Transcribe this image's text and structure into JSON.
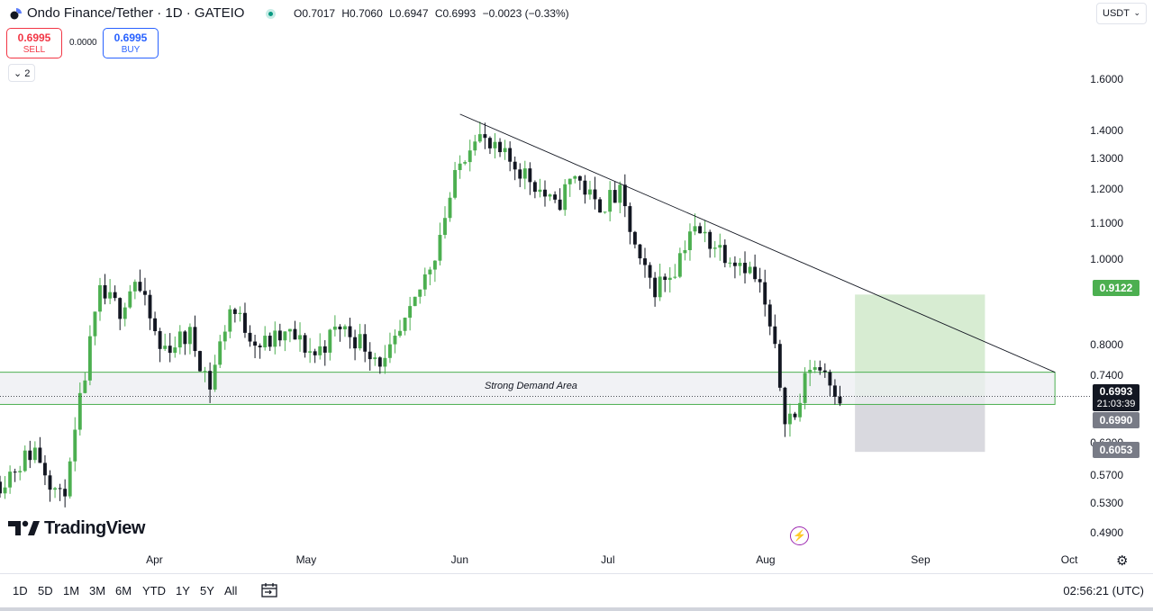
{
  "header": {
    "symbol_title": "Ondo Finance/Tether · 1D · GATEIO",
    "ohlc": {
      "o": "O0.7017",
      "h": "H0.7060",
      "l": "L0.6947",
      "c": "C0.6993",
      "change": "−0.0023 (−0.33%)"
    },
    "currency": "USDT"
  },
  "trade": {
    "sell_price": "0.6995",
    "sell_label": "SELL",
    "spread": "0.0000",
    "buy_price": "0.6995",
    "buy_label": "BUY",
    "indicators_count": "2"
  },
  "price_axis": {
    "labels": [
      "1.6000",
      "1.4000",
      "1.3000",
      "1.2000",
      "1.1000",
      "1.0000",
      "0.8000",
      "0.7400",
      "0.6200",
      "0.5700",
      "0.5300",
      "0.4900"
    ],
    "target_tag": "0.9122",
    "last_price": "0.6993",
    "countdown": "21:03:39",
    "close_tag": "0.6990",
    "stop_tag": "0.6053"
  },
  "time_axis": {
    "labels": [
      "Apr",
      "May",
      "Jun",
      "Jul",
      "Aug",
      "Sep",
      "Oct"
    ]
  },
  "annotations": {
    "zone_label": "Strong Demand Area"
  },
  "branding": {
    "logo_text": "TradingView"
  },
  "bottom_bar": {
    "ranges": [
      "1D",
      "5D",
      "1M",
      "3M",
      "6M",
      "YTD",
      "1Y",
      "5Y",
      "All"
    ],
    "clock": "02:56:21 (UTC)"
  },
  "colors": {
    "up": "#26a69a",
    "up_candle": "#4caf50",
    "down": "#131722",
    "target_zone": "#d7ecd2",
    "stop_zone": "#d9d9df",
    "demand_fill": "#eceef2",
    "demand_border": "#4caf50"
  },
  "icons": {
    "logo": "ondo-logo-icon",
    "live": "status-dot-icon",
    "flash": "lightning-icon",
    "settings": "gear-icon",
    "compare": "calendar-range-icon",
    "collapse": "chevron-down-icon"
  },
  "chart_data": {
    "type": "candlestick",
    "symbol": "ONDO/USDT",
    "timeframe": "1D",
    "x_range": [
      "2024-03-01",
      "2024-10-05"
    ],
    "y_range": [
      0.47,
      1.7
    ],
    "price_scale": "log",
    "close_trend": [
      [
        "2024-03-01",
        0.56
      ],
      [
        "2024-03-08",
        0.61
      ],
      [
        "2024-03-14",
        0.52
      ],
      [
        "2024-03-18",
        0.74
      ],
      [
        "2024-03-21",
        0.91
      ],
      [
        "2024-03-25",
        0.88
      ],
      [
        "2024-03-28",
        0.95
      ],
      [
        "2024-04-02",
        0.79
      ],
      [
        "2024-04-08",
        0.82
      ],
      [
        "2024-04-12",
        0.72
      ],
      [
        "2024-04-16",
        0.88
      ],
      [
        "2024-04-22",
        0.8
      ],
      [
        "2024-04-28",
        0.82
      ],
      [
        "2024-05-03",
        0.78
      ],
      [
        "2024-05-08",
        0.84
      ],
      [
        "2024-05-13",
        0.8
      ],
      [
        "2024-05-17",
        0.76
      ],
      [
        "2024-05-22",
        0.86
      ],
      [
        "2024-05-27",
        1.02
      ],
      [
        "2024-06-01",
        1.28
      ],
      [
        "2024-06-04",
        1.4
      ],
      [
        "2024-06-07",
        1.33
      ],
      [
        "2024-06-12",
        1.28
      ],
      [
        "2024-06-16",
        1.22
      ],
      [
        "2024-06-20",
        1.14
      ],
      [
        "2024-06-24",
        1.25
      ],
      [
        "2024-06-28",
        1.15
      ],
      [
        "2024-07-03",
        1.18
      ],
      [
        "2024-07-07",
        0.98
      ],
      [
        "2024-07-10",
        0.93
      ],
      [
        "2024-07-14",
        0.98
      ],
      [
        "2024-07-17",
        1.08
      ],
      [
        "2024-07-20",
        1.06
      ],
      [
        "2024-07-24",
        1.02
      ],
      [
        "2024-07-28",
        0.99
      ],
      [
        "2024-07-31",
        0.93
      ],
      [
        "2024-08-03",
        0.78
      ],
      [
        "2024-08-05",
        0.67
      ],
      [
        "2024-08-07",
        0.66
      ],
      [
        "2024-08-10",
        0.76
      ],
      [
        "2024-08-13",
        0.75
      ],
      [
        "2024-08-16",
        0.7
      ]
    ],
    "extremes": {
      "high": 1.48,
      "low": 0.49
    },
    "trendline": {
      "from": [
        "2024-06-01",
        1.46
      ],
      "to": [
        "2024-09-28",
        0.745
      ]
    },
    "demand_zone": {
      "label": "Strong Demand Area",
      "from": "2024-02-26",
      "to": "2024-09-28",
      "top": 0.745,
      "bottom": 0.685
    },
    "long_position": {
      "from": "2024-08-19",
      "to": "2024-09-14",
      "entry": 0.6993,
      "target": 0.9122,
      "stop": 0.6053
    },
    "last_price": 0.6993
  }
}
